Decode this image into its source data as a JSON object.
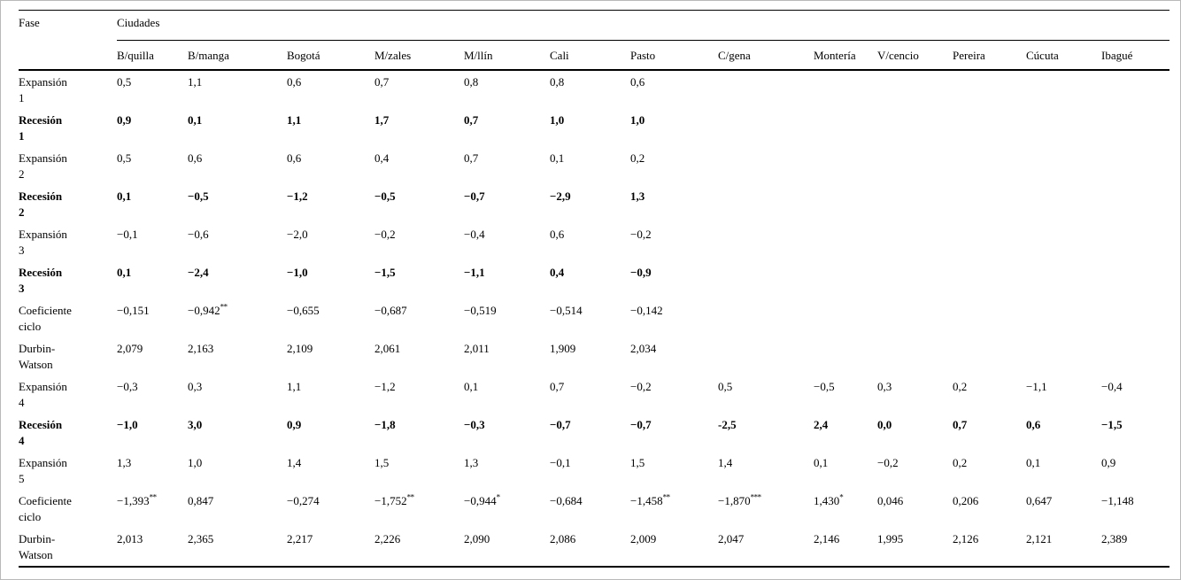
{
  "table": {
    "corner_header": "Fase",
    "group_header": "Ciudades",
    "columns": [
      "B/quilla",
      "B/manga",
      "Bogotá",
      "M/zales",
      "M/llín",
      "Cali",
      "Pasto",
      "C/gena",
      "Montería",
      "V/cencio",
      "Pereira",
      "Cúcuta",
      "Ibagué"
    ],
    "rows": [
      {
        "label": "Expansión\n1",
        "bold": false,
        "cells": [
          "0,5",
          "1,1",
          "0,6",
          "0,7",
          "0,8",
          "0,8",
          "0,6",
          "",
          "",
          "",
          "",
          "",
          ""
        ]
      },
      {
        "label": "Recesión\n1",
        "bold": true,
        "cells": [
          "0,9",
          "0,1",
          "1,1",
          "1,7",
          "0,7",
          "1,0",
          "1,0",
          "",
          "",
          "",
          "",
          "",
          ""
        ]
      },
      {
        "label": "Expansión\n2",
        "bold": false,
        "cells": [
          "0,5",
          "0,6",
          "0,6",
          "0,4",
          "0,7",
          "0,1",
          "0,2",
          "",
          "",
          "",
          "",
          "",
          ""
        ]
      },
      {
        "label": "Recesión\n2",
        "bold": true,
        "cells": [
          "0,1",
          "−0,5",
          "−1,2",
          "−0,5",
          "−0,7",
          "−2,9",
          "1,3",
          "",
          "",
          "",
          "",
          "",
          ""
        ]
      },
      {
        "label": "Expansión\n3",
        "bold": false,
        "cells": [
          "−0,1",
          "−0,6",
          "−2,0",
          "−0,2",
          "−0,4",
          "0,6",
          "−0,2",
          "",
          "",
          "",
          "",
          "",
          ""
        ]
      },
      {
        "label": "Recesión\n3",
        "bold": true,
        "cells": [
          "0,1",
          "−2,4",
          "−1,0",
          "−1,5",
          "−1,1",
          "0,4",
          "−0,9",
          "",
          "",
          "",
          "",
          "",
          ""
        ]
      },
      {
        "label": "Coeficiente\nciclo",
        "bold": false,
        "cells": [
          "−0,151",
          {
            "v": "−0,942",
            "s": "**"
          },
          "−0,655",
          "−0,687",
          "−0,519",
          "−0,514",
          "−0,142",
          "",
          "",
          "",
          "",
          "",
          ""
        ]
      },
      {
        "label": "Durbin-\nWatson",
        "bold": false,
        "cells": [
          "2,079",
          "2,163",
          "2,109",
          "2,061",
          "2,011",
          "1,909",
          "2,034",
          "",
          "",
          "",
          "",
          "",
          ""
        ]
      },
      {
        "label": "Expansión\n4",
        "bold": false,
        "cells": [
          "−0,3",
          "0,3",
          "1,1",
          "−1,2",
          "0,1",
          "0,7",
          "−0,2",
          "0,5",
          "−0,5",
          "0,3",
          "0,2",
          "−1,1",
          "−0,4"
        ]
      },
      {
        "label": "Recesión\n4",
        "bold": true,
        "cells": [
          "−1,0",
          "3,0",
          "0,9",
          "−1,8",
          "−0,3",
          "−0,7",
          "−0,7",
          "-2,5",
          "2,4",
          "0,0",
          "0,7",
          "0,6",
          "−1,5"
        ]
      },
      {
        "label": "Expansión\n5",
        "bold": false,
        "cells": [
          "1,3",
          "1,0",
          "1,4",
          "1,5",
          "1,3",
          "−0,1",
          "1,5",
          "1,4",
          "0,1",
          "−0,2",
          "0,2",
          "0,1",
          "0,9"
        ]
      },
      {
        "label": "Coeficiente\nciclo",
        "bold": false,
        "cells": [
          {
            "v": "−1,393",
            "s": "**"
          },
          "0,847",
          "−0,274",
          {
            "v": "−1,752",
            "s": "**"
          },
          {
            "v": "−0,944",
            "s": "*"
          },
          "−0,684",
          {
            "v": "−1,458",
            "s": "**"
          },
          {
            "v": "−1,870",
            "s": "***"
          },
          {
            "v": "1,430",
            "s": "*"
          },
          "0,046",
          "0,206",
          "0,647",
          "−1,148"
        ]
      },
      {
        "label": "Durbin-\nWatson",
        "bold": false,
        "cells": [
          "2,013",
          "2,365",
          "2,217",
          "2,226",
          "2,090",
          "2,086",
          "2,009",
          "2,047",
          "2,146",
          "1,995",
          "2,126",
          "2,121",
          "2,389"
        ]
      }
    ]
  }
}
